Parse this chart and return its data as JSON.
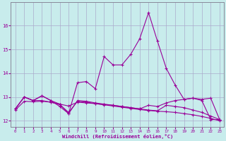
{
  "xlabel": "Windchill (Refroidissement éolien,°C)",
  "bg_color": "#c8ecec",
  "line_color": "#990099",
  "grid_color": "#aaaacc",
  "ylim": [
    11.75,
    17.0
  ],
  "xlim": [
    -0.5,
    23.5
  ],
  "yticks": [
    12,
    13,
    14,
    15,
    16
  ],
  "xticks": [
    0,
    1,
    2,
    3,
    4,
    5,
    6,
    7,
    8,
    9,
    10,
    11,
    12,
    13,
    14,
    15,
    16,
    17,
    18,
    19,
    20,
    21,
    22,
    23
  ],
  "s1_x": [
    0,
    1,
    2,
    3,
    4,
    5,
    6,
    7,
    8,
    9,
    10,
    11,
    12,
    13,
    14,
    15,
    16,
    17,
    18,
    19,
    20,
    21,
    22,
    23
  ],
  "s1_y": [
    12.5,
    13.0,
    12.85,
    13.05,
    12.85,
    12.6,
    12.3,
    13.6,
    13.65,
    13.35,
    14.7,
    14.35,
    14.35,
    14.8,
    15.45,
    16.55,
    15.35,
    14.2,
    13.5,
    12.9,
    12.95,
    12.85,
    12.05,
    12.05
  ],
  "s2_x": [
    0,
    1,
    2,
    3,
    4,
    5,
    6,
    7,
    8,
    9,
    10,
    11,
    12,
    13,
    14,
    15,
    16,
    17,
    18,
    19,
    20,
    21,
    22,
    23
  ],
  "s2_y": [
    12.5,
    13.0,
    12.85,
    12.85,
    12.78,
    12.7,
    12.62,
    12.78,
    12.75,
    12.72,
    12.68,
    12.65,
    12.6,
    12.55,
    12.5,
    12.45,
    12.42,
    12.65,
    12.6,
    12.55,
    12.45,
    12.35,
    12.2,
    12.05
  ],
  "s3_x": [
    0,
    1,
    2,
    3,
    4,
    5,
    6,
    7,
    8,
    9,
    10,
    11,
    12,
    13,
    14,
    15,
    16,
    17,
    18,
    19,
    20,
    21,
    22,
    23
  ],
  "s3_y": [
    12.5,
    13.0,
    12.85,
    13.05,
    12.85,
    12.7,
    12.3,
    12.85,
    12.82,
    12.75,
    12.7,
    12.65,
    12.6,
    12.55,
    12.5,
    12.65,
    12.6,
    12.75,
    12.85,
    12.9,
    12.95,
    12.9,
    12.95,
    12.05
  ],
  "s4_x": [
    0,
    1,
    2,
    3,
    4,
    5,
    6,
    7,
    8,
    9,
    10,
    11,
    12,
    13,
    14,
    15,
    16,
    17,
    18,
    19,
    20,
    21,
    22,
    23
  ],
  "s4_y": [
    12.45,
    12.82,
    12.8,
    12.82,
    12.78,
    12.68,
    12.35,
    12.82,
    12.78,
    12.72,
    12.67,
    12.62,
    12.57,
    12.52,
    12.47,
    12.43,
    12.4,
    12.38,
    12.35,
    12.3,
    12.25,
    12.18,
    12.1,
    12.0
  ]
}
